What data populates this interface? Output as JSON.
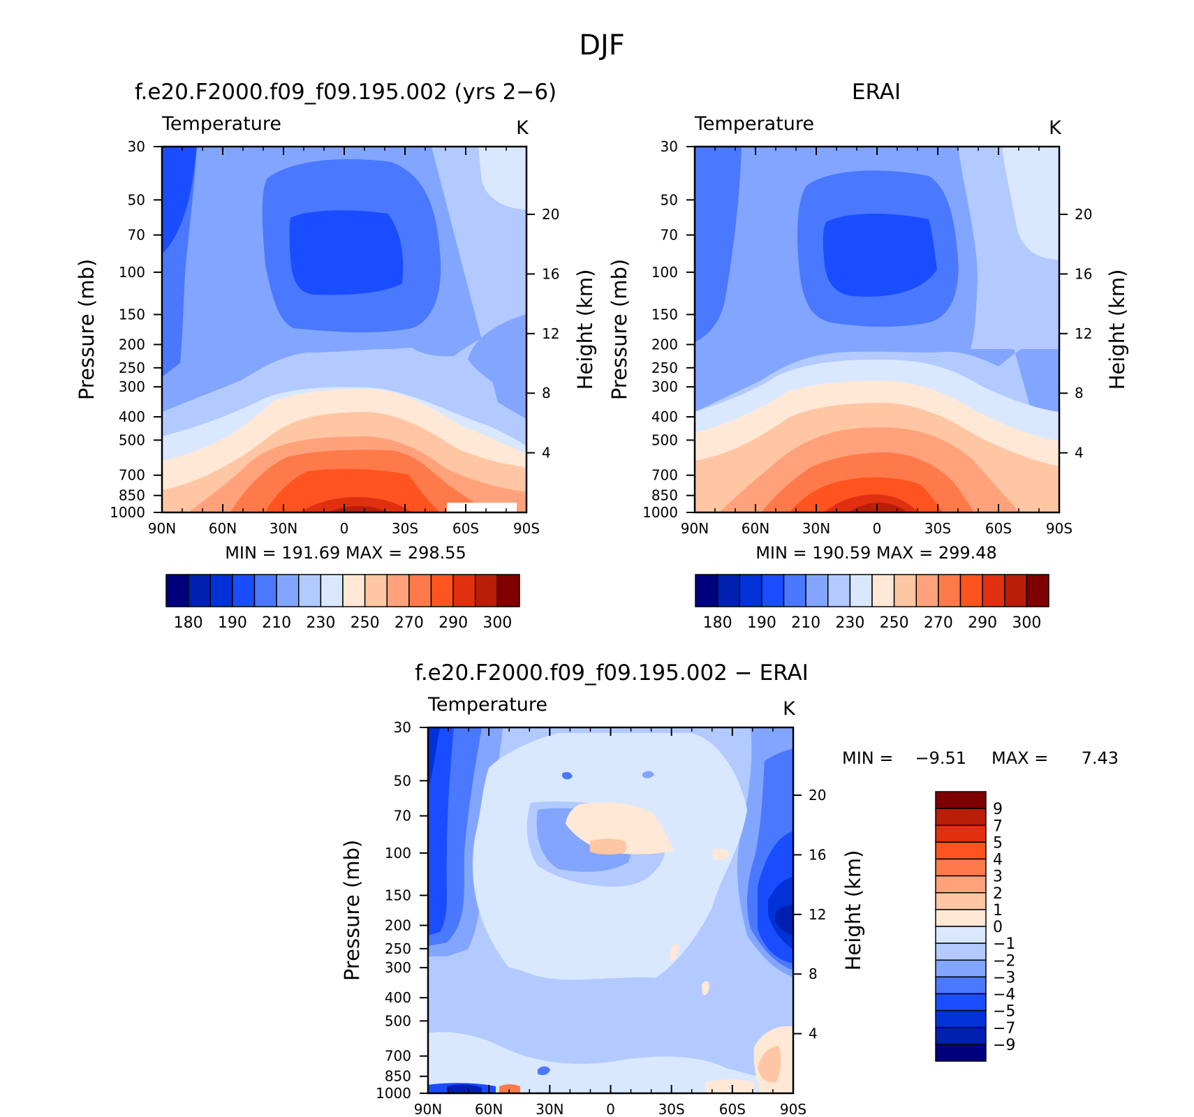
{
  "figure_title": "DJF",
  "colors": {
    "temp_palette": [
      "#00007f",
      "#0020b0",
      "#0032d8",
      "#1a4dff",
      "#4a78ff",
      "#82a6ff",
      "#b2caff",
      "#d9e8ff",
      "#ffe8d6",
      "#ffc6a4",
      "#ffa27c",
      "#ff7a4a",
      "#ff5420",
      "#e03010",
      "#b81e08",
      "#7f0000"
    ],
    "diff_palette": [
      "#00007f",
      "#0020b0",
      "#0032d8",
      "#1a4dff",
      "#4a78ff",
      "#82a6ff",
      "#b2caff",
      "#d9e8ff",
      "#ffe8d6",
      "#ffc6a4",
      "#ffa27c",
      "#ff7a4a",
      "#ff5420",
      "#e03010",
      "#b81e08",
      "#7f0000"
    ]
  },
  "chart_data": [
    {
      "type": "heatmap",
      "panel": "model",
      "title": "f.e20.F2000.f09_f09.195.002 (yrs 2−6)",
      "left_label": "Temperature",
      "units": "K",
      "ylabel": "Pressure (mb)",
      "ylabel_right": "Height (km)",
      "x_ticklabels": [
        "90N",
        "60N",
        "30N",
        "0",
        "30S",
        "60S",
        "90S"
      ],
      "x_values": [
        90,
        60,
        30,
        0,
        -30,
        -60,
        -90
      ],
      "y_ticklabels": [
        "30",
        "50",
        "70",
        "100",
        "150",
        "200",
        "250",
        "300",
        "400",
        "500",
        "700",
        "850",
        "1000"
      ],
      "y_values": [
        30,
        50,
        70,
        100,
        150,
        200,
        250,
        300,
        400,
        500,
        700,
        850,
        1000
      ],
      "ylim": [
        1000,
        30
      ],
      "height_ticklabels": [
        "4",
        "8",
        "12",
        "16",
        "20"
      ],
      "height_values": [
        4,
        8,
        12,
        16,
        20
      ],
      "stats": "MIN =  191.69   MAX =  298.55",
      "min": 191.69,
      "max": 298.55,
      "colorbar_labels": [
        "180",
        "190",
        "210",
        "230",
        "250",
        "270",
        "290",
        "300"
      ],
      "contour_levels": [
        180,
        185,
        190,
        200,
        210,
        220,
        230,
        240,
        250,
        260,
        270,
        280,
        290,
        295,
        300
      ]
    },
    {
      "type": "heatmap",
      "panel": "obs",
      "title": "ERAI",
      "left_label": "Temperature",
      "units": "K",
      "ylabel": "Pressure (mb)",
      "ylabel_right": "Height (km)",
      "x_ticklabels": [
        "90N",
        "60N",
        "30N",
        "0",
        "30S",
        "60S",
        "90S"
      ],
      "x_values": [
        90,
        60,
        30,
        0,
        -30,
        -60,
        -90
      ],
      "y_ticklabels": [
        "30",
        "50",
        "70",
        "100",
        "150",
        "200",
        "250",
        "300",
        "400",
        "500",
        "700",
        "850",
        "1000"
      ],
      "y_values": [
        30,
        50,
        70,
        100,
        150,
        200,
        250,
        300,
        400,
        500,
        700,
        850,
        1000
      ],
      "ylim": [
        1000,
        30
      ],
      "height_ticklabels": [
        "4",
        "8",
        "12",
        "16",
        "20"
      ],
      "height_values": [
        4,
        8,
        12,
        16,
        20
      ],
      "stats": "MIN =  190.59   MAX =  299.48",
      "min": 190.59,
      "max": 299.48,
      "colorbar_labels": [
        "180",
        "190",
        "210",
        "230",
        "250",
        "270",
        "290",
        "300"
      ],
      "contour_levels": [
        180,
        185,
        190,
        200,
        210,
        220,
        230,
        240,
        250,
        260,
        270,
        280,
        290,
        295,
        300
      ]
    },
    {
      "type": "heatmap",
      "panel": "difference",
      "title": "f.e20.F2000.f09_f09.195.002 − ERAI",
      "left_label": "Temperature",
      "units": "K",
      "ylabel": "Pressure (mb)",
      "ylabel_right": "Height (km)",
      "x_ticklabels": [
        "90N",
        "60N",
        "30N",
        "0",
        "30S",
        "60S",
        "90S"
      ],
      "x_values": [
        90,
        60,
        30,
        0,
        -30,
        -60,
        -90
      ],
      "y_ticklabels": [
        "30",
        "50",
        "70",
        "100",
        "150",
        "200",
        "250",
        "300",
        "400",
        "500",
        "700",
        "850",
        "1000"
      ],
      "y_values": [
        30,
        50,
        70,
        100,
        150,
        200,
        250,
        300,
        400,
        500,
        700,
        850,
        1000
      ],
      "ylim": [
        1000,
        30
      ],
      "height_ticklabels": [
        "4",
        "8",
        "12",
        "16",
        "20"
      ],
      "height_values": [
        4,
        8,
        12,
        16,
        20
      ],
      "stats_min_label": "MIN =",
      "stats_min": "−9.51",
      "stats_max_label": "MAX =",
      "stats_max": "7.43",
      "min": -9.51,
      "max": 7.43,
      "colorbar_labels": [
        "9",
        "7",
        "5",
        "4",
        "3",
        "2",
        "1",
        "0",
        "−1",
        "−2",
        "−3",
        "−4",
        "−5",
        "−7",
        "−9"
      ],
      "contour_levels": [
        -9,
        -7,
        -5,
        -4,
        -3,
        -2,
        -1,
        0,
        1,
        2,
        3,
        4,
        5,
        7,
        9
      ]
    }
  ]
}
